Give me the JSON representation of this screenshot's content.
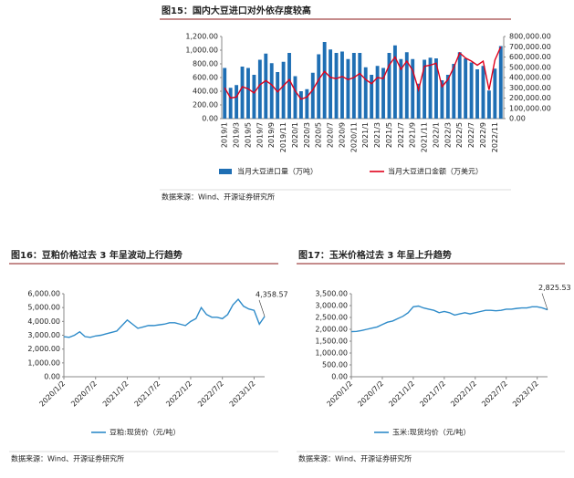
{
  "chart_data": [
    {
      "type": "bar_line",
      "title": "图15：国内大豆进口对外依存度较高",
      "categories": [
        "2019/1",
        null,
        "2019/3",
        null,
        "2019/5",
        null,
        "2019/7",
        null,
        "2019/9",
        null,
        "2019/11",
        null,
        "2020/1",
        null,
        "2020/3",
        null,
        "2020/5",
        null,
        "2020/7",
        null,
        "2020/9",
        null,
        "2020/11",
        null,
        "2021/1",
        null,
        "2021/3",
        null,
        "2021/5",
        null,
        "2021/7",
        null,
        "2021/9",
        null,
        "2021/11",
        null,
        "2022/1",
        null,
        "2022/3",
        null,
        "2022/5",
        null,
        "2022/7",
        null,
        "2022/9",
        null,
        "2022/11",
        null
      ],
      "series": [
        {
          "name": "当月大豆进口量（万吨）",
          "type": "bar",
          "color": "#1f6fb4",
          "values": [
            740,
            450,
            490,
            760,
            740,
            640,
            860,
            950,
            810,
            680,
            830,
            960,
            620,
            400,
            430,
            670,
            940,
            1120,
            1010,
            960,
            980,
            870,
            960,
            960,
            750,
            640,
            770,
            740,
            960,
            1070,
            870,
            970,
            870,
            510,
            860,
            890,
            880,
            560,
            640,
            800,
            970,
            880,
            820,
            720,
            770,
            410,
            730,
            1060
          ]
        },
        {
          "name": "当月大豆进口金额（万美元）",
          "type": "line",
          "axis": "y2",
          "color": "#e0001b",
          "values": [
            300000,
            200000,
            210000,
            310000,
            290000,
            250000,
            330000,
            370000,
            330000,
            260000,
            320000,
            380000,
            270000,
            190000,
            210000,
            280000,
            380000,
            460000,
            400000,
            390000,
            410000,
            380000,
            400000,
            440000,
            380000,
            340000,
            400000,
            390000,
            520000,
            600000,
            480000,
            560000,
            470000,
            280000,
            510000,
            520000,
            540000,
            310000,
            380000,
            500000,
            640000,
            590000,
            560000,
            520000,
            560000,
            280000,
            570000,
            700000
          ]
        }
      ],
      "ylim": [
        0,
        1200
      ],
      "yticks": [
        {
          "value": 0,
          "label": "0.00"
        },
        {
          "value": 200,
          "label": "200.00"
        },
        {
          "value": 400,
          "label": "400.00"
        },
        {
          "value": 600,
          "label": "600.00"
        },
        {
          "value": 800,
          "label": "800.00"
        },
        {
          "value": 1000,
          "label": "1,000.00"
        },
        {
          "value": 1200,
          "label": "1,200.00"
        }
      ],
      "y2lim": [
        0,
        800000
      ],
      "y2ticks": [
        {
          "value": 0,
          "label": "0.00"
        },
        {
          "value": 100000,
          "label": "100,000.00"
        },
        {
          "value": 200000,
          "label": "200,000.00"
        },
        {
          "value": 300000,
          "label": "300,000.00"
        },
        {
          "value": 400000,
          "label": "400,000.00"
        },
        {
          "value": 500000,
          "label": "500,000.00"
        },
        {
          "value": 600000,
          "label": "600,000.00"
        },
        {
          "value": 700000,
          "label": "700,000.00"
        },
        {
          "value": 800000,
          "label": "800,000.00"
        }
      ],
      "source": "数据来源：Wind、开源证券研究所"
    },
    {
      "type": "line",
      "title": "图16：豆粕价格过去 3 年呈波动上行趋势",
      "x": [
        "2020/1/2",
        "2020/2/2",
        "2020/3/2",
        "2020/4/2",
        "2020/5/2",
        "2020/6/2",
        "2020/7/2",
        "2020/8/2",
        "2020/9/2",
        "2020/10/2",
        "2020/11/2",
        "2020/12/2",
        "2021/1/2",
        "2021/2/2",
        "2021/3/2",
        "2021/4/2",
        "2021/5/2",
        "2021/6/2",
        "2021/7/2",
        "2021/8/2",
        "2021/9/2",
        "2021/10/2",
        "2021/11/2",
        "2021/12/2",
        "2022/1/2",
        "2022/2/2",
        "2022/3/2",
        "2022/4/2",
        "2022/5/2",
        "2022/6/2",
        "2022/7/2",
        "2022/8/2",
        "2022/9/2",
        "2022/10/2",
        "2022/11/2",
        "2022/12/2",
        "2023/1/2",
        "2023/2/2",
        "2023/3/2"
      ],
      "xticks": [
        "2020/1/2",
        "2020/7/2",
        "2021/1/2",
        "2021/7/2",
        "2022/1/2",
        "2022/7/2",
        "2023/1/2"
      ],
      "series": [
        {
          "name": "豆粕:现货价（元/吨）",
          "color": "#2e8bc9",
          "values": [
            2900,
            2850,
            3000,
            3250,
            2900,
            2850,
            2950,
            3000,
            3100,
            3200,
            3300,
            3700,
            4100,
            3800,
            3500,
            3600,
            3700,
            3700,
            3750,
            3800,
            3900,
            3900,
            3800,
            3700,
            4000,
            4200,
            5000,
            4500,
            4300,
            4300,
            4200,
            4500,
            5200,
            5600,
            5100,
            4900,
            4800,
            3800,
            4358.57
          ]
        }
      ],
      "ylim": [
        0,
        6000
      ],
      "yticks": [
        {
          "value": 0,
          "label": "0.00"
        },
        {
          "value": 1000,
          "label": "1,000.00"
        },
        {
          "value": 2000,
          "label": "2,000.00"
        },
        {
          "value": 3000,
          "label": "3,000.00"
        },
        {
          "value": 4000,
          "label": "4,000.00"
        },
        {
          "value": 5000,
          "label": "5,000.00"
        },
        {
          "value": 6000,
          "label": "6,000.00"
        }
      ],
      "annotation": "4,358.57",
      "source": "数据来源：Wind、开源证券研究所"
    },
    {
      "type": "line",
      "title": "图17：玉米价格过去 3 年呈上升趋势",
      "x": [
        "2020/1/2",
        "2020/2/2",
        "2020/3/2",
        "2020/4/2",
        "2020/5/2",
        "2020/6/2",
        "2020/7/2",
        "2020/8/2",
        "2020/9/2",
        "2020/10/2",
        "2020/11/2",
        "2020/12/2",
        "2021/1/2",
        "2021/2/2",
        "2021/3/2",
        "2021/4/2",
        "2021/5/2",
        "2021/6/2",
        "2021/7/2",
        "2021/8/2",
        "2021/9/2",
        "2021/10/2",
        "2021/11/2",
        "2021/12/2",
        "2022/1/2",
        "2022/2/2",
        "2022/3/2",
        "2022/4/2",
        "2022/5/2",
        "2022/6/2",
        "2022/7/2",
        "2022/8/2",
        "2022/9/2",
        "2022/10/2",
        "2022/11/2",
        "2022/12/2",
        "2023/1/2",
        "2023/2/2",
        "2023/3/2"
      ],
      "xticks": [
        "2020/1/2",
        "2020/7/2",
        "2021/1/2",
        "2021/7/2",
        "2022/1/2",
        "2022/7/2",
        "2023/1/2"
      ],
      "series": [
        {
          "name": "玉米:现货均价（元/吨）",
          "color": "#2e8bc9",
          "values": [
            1900,
            1910,
            1950,
            2000,
            2050,
            2100,
            2200,
            2300,
            2350,
            2450,
            2550,
            2700,
            2950,
            2980,
            2900,
            2850,
            2800,
            2700,
            2750,
            2700,
            2600,
            2650,
            2700,
            2650,
            2700,
            2750,
            2800,
            2800,
            2780,
            2800,
            2850,
            2850,
            2880,
            2900,
            2900,
            2950,
            2950,
            2900,
            2825.53
          ]
        }
      ],
      "ylim": [
        0,
        3500
      ],
      "yticks": [
        {
          "value": 0,
          "label": "0.00"
        },
        {
          "value": 500,
          "label": "500.00"
        },
        {
          "value": 1000,
          "label": "1,000.00"
        },
        {
          "value": 1500,
          "label": "1,500.00"
        },
        {
          "value": 2000,
          "label": "2,000.00"
        },
        {
          "value": 2500,
          "label": "2,500.00"
        },
        {
          "value": 3000,
          "label": "3,000.00"
        },
        {
          "value": 3500,
          "label": "3,500.00"
        }
      ],
      "annotation": "2,825.53",
      "source": "数据来源：Wind、开源证券研究所"
    }
  ]
}
